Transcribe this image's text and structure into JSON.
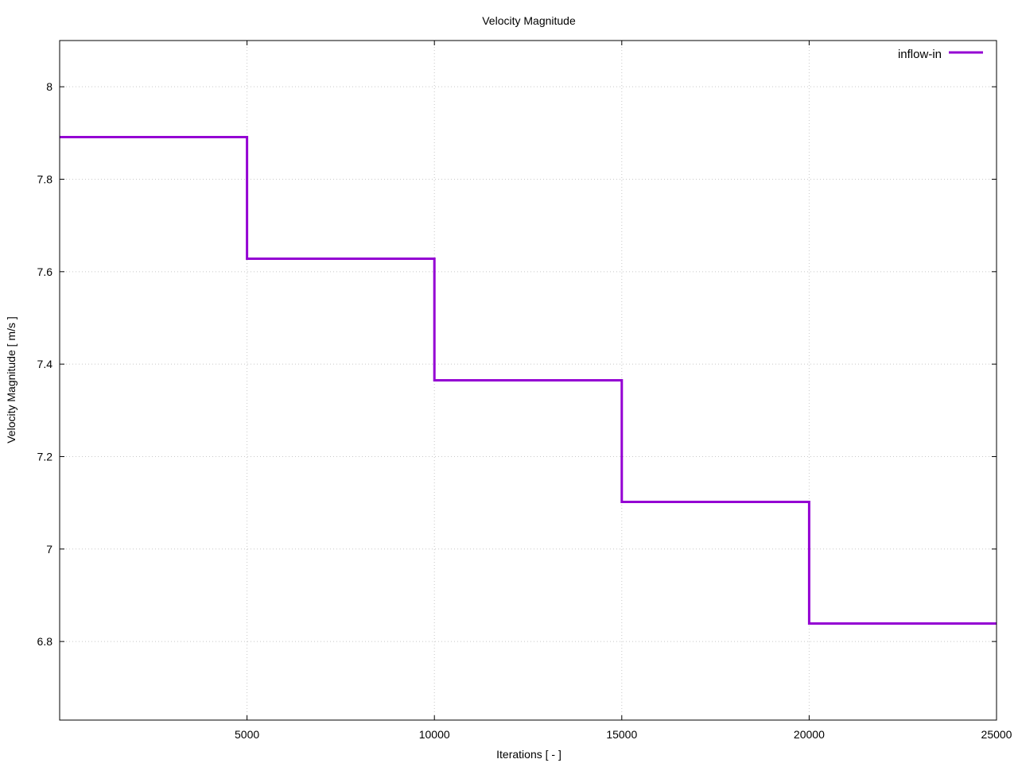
{
  "chart_data": {
    "type": "line",
    "title": "Velocity Magnitude",
    "xlabel": "Iterations [ - ]",
    "ylabel": "Velocity Magnitude [ m/s ]",
    "xlim": [
      0,
      25000
    ],
    "ylim": [
      6.63,
      8.1
    ],
    "xticks": [
      5000,
      10000,
      15000,
      20000,
      25000
    ],
    "xtick_labels": [
      "5000",
      "10000",
      "15000",
      "20000",
      "25000"
    ],
    "yticks": [
      6.8,
      7,
      7.2,
      7.4,
      7.6,
      7.8,
      8
    ],
    "ytick_labels": [
      "6.8",
      "7",
      "7.2",
      "7.4",
      "7.6",
      "7.8",
      "8"
    ],
    "grid": true,
    "legend_position": "top-right",
    "series": [
      {
        "name": "inflow-in",
        "color": "#9400d3",
        "step": true,
        "x": [
          0,
          5000,
          5000,
          10000,
          10000,
          15000,
          15000,
          20000,
          20000,
          25000
        ],
        "y": [
          7.891,
          7.891,
          7.628,
          7.628,
          7.365,
          7.365,
          7.102,
          7.102,
          6.839,
          6.839
        ]
      }
    ]
  }
}
